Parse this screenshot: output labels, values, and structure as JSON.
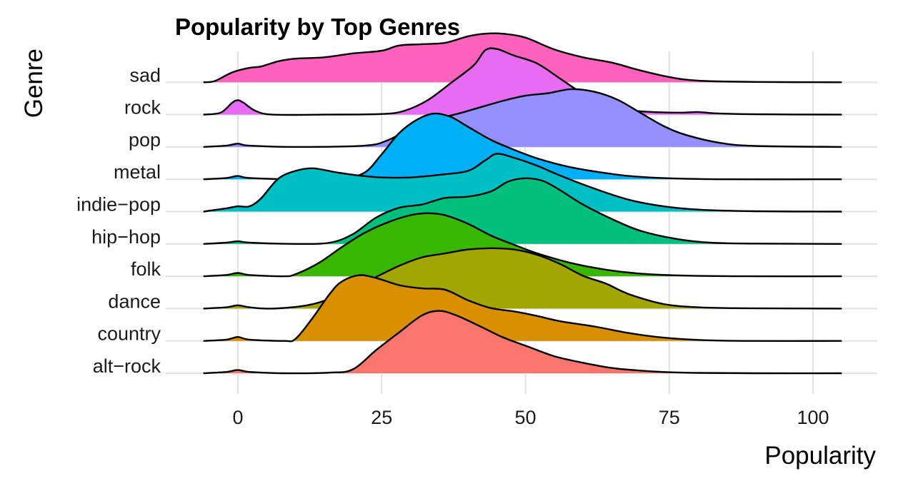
{
  "chart_data": {
    "type": "ridgeline",
    "title": "Popularity by Top Genres",
    "xlabel": "Popularity",
    "ylabel": "Genre",
    "xlim": [
      -6,
      105
    ],
    "x_ticks": [
      0,
      25,
      50,
      75,
      100
    ],
    "grid": true,
    "legend": "none",
    "series": [
      {
        "name": "alt-rock",
        "color": "#F8766D",
        "points": [
          [
            -6,
            0
          ],
          [
            -2,
            0.02
          ],
          [
            0,
            0.05
          ],
          [
            2,
            0.02
          ],
          [
            8,
            0
          ],
          [
            16,
            0.01
          ],
          [
            20,
            0.06
          ],
          [
            24,
            0.35
          ],
          [
            28,
            0.62
          ],
          [
            32,
            0.88
          ],
          [
            35,
            0.95
          ],
          [
            38,
            0.88
          ],
          [
            42,
            0.72
          ],
          [
            46,
            0.55
          ],
          [
            50,
            0.42
          ],
          [
            55,
            0.26
          ],
          [
            60,
            0.16
          ],
          [
            65,
            0.08
          ],
          [
            70,
            0.04
          ],
          [
            75,
            0.015
          ],
          [
            80,
            0.005
          ],
          [
            90,
            0
          ],
          [
            105,
            0
          ]
        ]
      },
      {
        "name": "country",
        "color": "#D89000",
        "points": [
          [
            -6,
            0
          ],
          [
            -2,
            0.02
          ],
          [
            0,
            0.06
          ],
          [
            2,
            0.02
          ],
          [
            8,
            0
          ],
          [
            10,
            0.03
          ],
          [
            13,
            0.35
          ],
          [
            16,
            0.72
          ],
          [
            18,
            0.9
          ],
          [
            21,
            1.0
          ],
          [
            24,
            0.96
          ],
          [
            28,
            0.85
          ],
          [
            32,
            0.8
          ],
          [
            36,
            0.78
          ],
          [
            40,
            0.62
          ],
          [
            44,
            0.5
          ],
          [
            48,
            0.45
          ],
          [
            52,
            0.38
          ],
          [
            56,
            0.3
          ],
          [
            62,
            0.22
          ],
          [
            68,
            0.12
          ],
          [
            74,
            0.05
          ],
          [
            80,
            0.015
          ],
          [
            88,
            0
          ],
          [
            105,
            0
          ]
        ]
      },
      {
        "name": "dance",
        "color": "#A3A500",
        "points": [
          [
            -6,
            0
          ],
          [
            -2,
            0.02
          ],
          [
            0,
            0.05
          ],
          [
            2,
            0.02
          ],
          [
            6,
            0
          ],
          [
            12,
            0.05
          ],
          [
            16,
            0.15
          ],
          [
            20,
            0.3
          ],
          [
            24,
            0.48
          ],
          [
            28,
            0.65
          ],
          [
            32,
            0.78
          ],
          [
            36,
            0.84
          ],
          [
            40,
            0.9
          ],
          [
            44,
            0.92
          ],
          [
            48,
            0.9
          ],
          [
            52,
            0.82
          ],
          [
            56,
            0.68
          ],
          [
            60,
            0.5
          ],
          [
            64,
            0.38
          ],
          [
            68,
            0.22
          ],
          [
            74,
            0.07
          ],
          [
            80,
            0.02
          ],
          [
            88,
            0.005
          ],
          [
            105,
            0
          ]
        ]
      },
      {
        "name": "folk",
        "color": "#39B600",
        "points": [
          [
            -6,
            0
          ],
          [
            -2,
            0.02
          ],
          [
            0,
            0.05
          ],
          [
            2,
            0.02
          ],
          [
            8,
            0
          ],
          [
            10,
            0.03
          ],
          [
            14,
            0.2
          ],
          [
            18,
            0.44
          ],
          [
            22,
            0.66
          ],
          [
            26,
            0.82
          ],
          [
            30,
            0.93
          ],
          [
            33,
            0.96
          ],
          [
            36,
            0.93
          ],
          [
            40,
            0.8
          ],
          [
            44,
            0.62
          ],
          [
            48,
            0.48
          ],
          [
            52,
            0.35
          ],
          [
            58,
            0.2
          ],
          [
            64,
            0.1
          ],
          [
            70,
            0.04
          ],
          [
            78,
            0.01
          ],
          [
            88,
            0
          ],
          [
            105,
            0
          ]
        ]
      },
      {
        "name": "hip-hop",
        "color": "#00BF7D",
        "points": [
          [
            -6,
            0
          ],
          [
            -2,
            0.02
          ],
          [
            0,
            0.04
          ],
          [
            2,
            0.02
          ],
          [
            10,
            0
          ],
          [
            16,
            0.02
          ],
          [
            20,
            0.15
          ],
          [
            24,
            0.4
          ],
          [
            28,
            0.55
          ],
          [
            32,
            0.6
          ],
          [
            36,
            0.7
          ],
          [
            40,
            0.72
          ],
          [
            44,
            0.8
          ],
          [
            47,
            0.95
          ],
          [
            50,
            1.0
          ],
          [
            53,
            0.96
          ],
          [
            56,
            0.82
          ],
          [
            60,
            0.6
          ],
          [
            65,
            0.38
          ],
          [
            70,
            0.2
          ],
          [
            76,
            0.08
          ],
          [
            82,
            0.02
          ],
          [
            90,
            0.005
          ],
          [
            105,
            0
          ]
        ]
      },
      {
        "name": "indie-pop",
        "color": "#00BFC4",
        "points": [
          [
            -6,
            0
          ],
          [
            -2,
            0.05
          ],
          [
            0,
            0.08
          ],
          [
            2,
            0.08
          ],
          [
            4,
            0.2
          ],
          [
            7,
            0.5
          ],
          [
            10,
            0.62
          ],
          [
            13,
            0.66
          ],
          [
            17,
            0.6
          ],
          [
            21,
            0.55
          ],
          [
            25,
            0.52
          ],
          [
            30,
            0.52
          ],
          [
            35,
            0.56
          ],
          [
            40,
            0.62
          ],
          [
            43,
            0.78
          ],
          [
            45,
            0.88
          ],
          [
            48,
            0.82
          ],
          [
            52,
            0.7
          ],
          [
            56,
            0.55
          ],
          [
            62,
            0.35
          ],
          [
            68,
            0.18
          ],
          [
            74,
            0.08
          ],
          [
            80,
            0.03
          ],
          [
            90,
            0.005
          ],
          [
            105,
            0
          ]
        ]
      },
      {
        "name": "metal",
        "color": "#00B0F6",
        "points": [
          [
            -6,
            0
          ],
          [
            -2,
            0.02
          ],
          [
            0,
            0.05
          ],
          [
            2,
            0.02
          ],
          [
            10,
            0
          ],
          [
            18,
            0.02
          ],
          [
            22,
            0.1
          ],
          [
            25,
            0.38
          ],
          [
            28,
            0.7
          ],
          [
            31,
            0.9
          ],
          [
            34,
            1.0
          ],
          [
            37,
            0.95
          ],
          [
            40,
            0.8
          ],
          [
            44,
            0.6
          ],
          [
            48,
            0.45
          ],
          [
            52,
            0.32
          ],
          [
            57,
            0.2
          ],
          [
            62,
            0.12
          ],
          [
            68,
            0.05
          ],
          [
            75,
            0.015
          ],
          [
            85,
            0
          ],
          [
            105,
            0
          ]
        ]
      },
      {
        "name": "pop",
        "color": "#9590FF",
        "points": [
          [
            -6,
            0
          ],
          [
            -2,
            0.02
          ],
          [
            0,
            0.05
          ],
          [
            2,
            0.02
          ],
          [
            10,
            0
          ],
          [
            22,
            0.02
          ],
          [
            26,
            0.1
          ],
          [
            30,
            0.28
          ],
          [
            34,
            0.42
          ],
          [
            38,
            0.5
          ],
          [
            42,
            0.6
          ],
          [
            46,
            0.7
          ],
          [
            50,
            0.78
          ],
          [
            54,
            0.82
          ],
          [
            58,
            0.88
          ],
          [
            62,
            0.84
          ],
          [
            66,
            0.72
          ],
          [
            70,
            0.52
          ],
          [
            74,
            0.32
          ],
          [
            78,
            0.18
          ],
          [
            84,
            0.06
          ],
          [
            90,
            0.015
          ],
          [
            105,
            0
          ]
        ]
      },
      {
        "name": "rock",
        "color": "#E76BF3",
        "points": [
          [
            -6,
            0
          ],
          [
            -3,
            0.03
          ],
          [
            -1,
            0.18
          ],
          [
            0,
            0.22
          ],
          [
            1,
            0.18
          ],
          [
            3,
            0.06
          ],
          [
            6,
            0
          ],
          [
            15,
            0
          ],
          [
            25,
            0.01
          ],
          [
            29,
            0.06
          ],
          [
            33,
            0.22
          ],
          [
            37,
            0.48
          ],
          [
            41,
            0.75
          ],
          [
            43,
            0.98
          ],
          [
            45,
            1.0
          ],
          [
            48,
            0.9
          ],
          [
            52,
            0.78
          ],
          [
            56,
            0.55
          ],
          [
            60,
            0.32
          ],
          [
            64,
            0.16
          ],
          [
            68,
            0.07
          ],
          [
            72,
            0.04
          ],
          [
            77,
            0.03
          ],
          [
            80,
            0.04
          ],
          [
            83,
            0.02
          ],
          [
            90,
            0.005
          ],
          [
            105,
            0
          ]
        ]
      },
      {
        "name": "sad",
        "color": "#FF62BC",
        "points": [
          [
            -6,
            0
          ],
          [
            -4,
            0.02
          ],
          [
            -1,
            0.15
          ],
          [
            2,
            0.22
          ],
          [
            4,
            0.24
          ],
          [
            7,
            0.32
          ],
          [
            10,
            0.36
          ],
          [
            15,
            0.38
          ],
          [
            20,
            0.44
          ],
          [
            25,
            0.48
          ],
          [
            28,
            0.56
          ],
          [
            32,
            0.58
          ],
          [
            36,
            0.6
          ],
          [
            40,
            0.7
          ],
          [
            43,
            0.74
          ],
          [
            46,
            0.74
          ],
          [
            50,
            0.68
          ],
          [
            55,
            0.5
          ],
          [
            60,
            0.38
          ],
          [
            65,
            0.3
          ],
          [
            70,
            0.18
          ],
          [
            75,
            0.08
          ],
          [
            80,
            0.025
          ],
          [
            90,
            0.005
          ],
          [
            105,
            0
          ]
        ]
      }
    ]
  }
}
